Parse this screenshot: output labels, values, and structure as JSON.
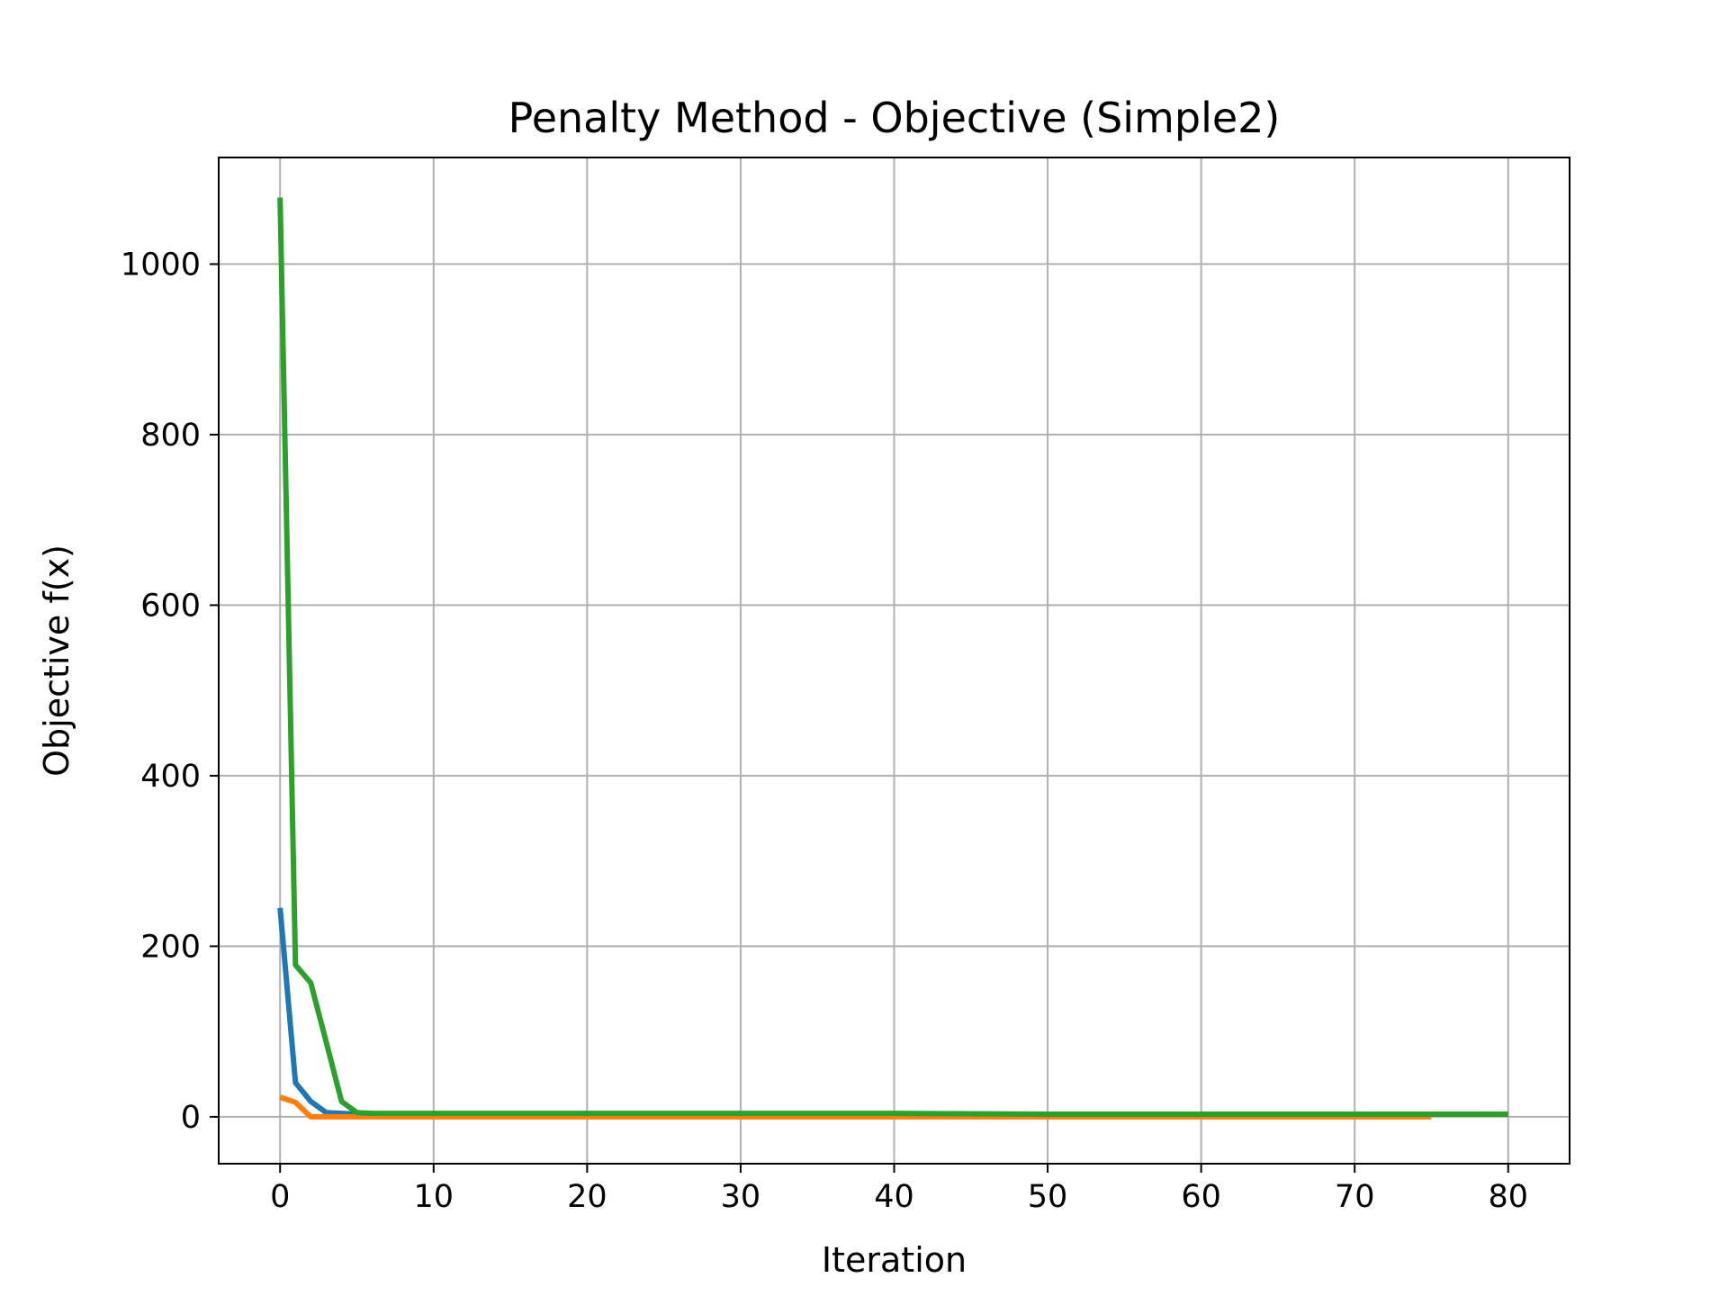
{
  "chart_data": {
    "type": "line",
    "title": "Penalty Method - Objective (Simple2)",
    "xlabel": "Iteration",
    "ylabel": "Objective f(x)",
    "xlim": [
      -4,
      84
    ],
    "ylim": [
      -55,
      1125
    ],
    "xticks": [
      0,
      10,
      20,
      30,
      40,
      50,
      60,
      70,
      80
    ],
    "yticks": [
      0,
      200,
      400,
      600,
      800,
      1000
    ],
    "grid": true,
    "series": [
      {
        "color": "#1f77b4",
        "x": [
          0,
          1,
          2,
          3,
          4,
          5,
          10,
          20,
          30,
          40,
          50,
          60,
          70,
          75
        ],
        "y": [
          245,
          40,
          18,
          5,
          4,
          3,
          3,
          3,
          3,
          3,
          3,
          3,
          3,
          3
        ]
      },
      {
        "color": "#ff7f0e",
        "x": [
          0,
          1,
          2,
          3,
          5,
          10,
          20,
          30,
          40,
          50,
          60,
          70,
          75
        ],
        "y": [
          23,
          17,
          0,
          0,
          0,
          0,
          0,
          0,
          0,
          0,
          0,
          0,
          0
        ]
      },
      {
        "color": "#2ca02c",
        "x": [
          0,
          1,
          2,
          3,
          4,
          5,
          6,
          10,
          20,
          30,
          40,
          50,
          60,
          70,
          80
        ],
        "y": [
          1078,
          178,
          157,
          88,
          18,
          5,
          4,
          4,
          4,
          4,
          4,
          3,
          3,
          3,
          3
        ]
      }
    ]
  }
}
